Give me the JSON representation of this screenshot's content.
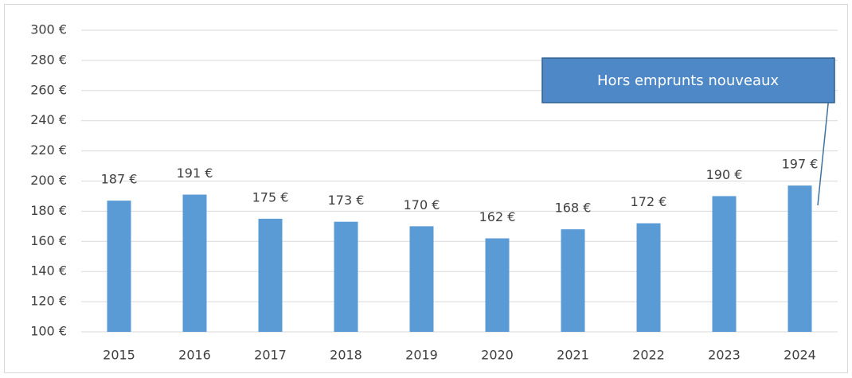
{
  "chart_data": {
    "type": "bar",
    "categories": [
      "2015",
      "2016",
      "2017",
      "2018",
      "2019",
      "2020",
      "2021",
      "2022",
      "2023",
      "2024"
    ],
    "values": [
      187,
      191,
      175,
      173,
      170,
      162,
      168,
      172,
      190,
      197
    ],
    "value_labels": [
      "187 €",
      "191 €",
      "175 €",
      "173 €",
      "170 €",
      "162 €",
      "168 €",
      "172 €",
      "190 €",
      "197 €"
    ],
    "color": "#5b9bd5",
    "ylim": [
      100,
      300
    ],
    "yticks": [
      {
        "value": 100,
        "label": "100 €"
      },
      {
        "value": 120,
        "label": "120 €"
      },
      {
        "value": 140,
        "label": "140 €"
      },
      {
        "value": 160,
        "label": "160 €"
      },
      {
        "value": 180,
        "label": "180 €"
      },
      {
        "value": 200,
        "label": "200 €"
      },
      {
        "value": 220,
        "label": "220 €"
      },
      {
        "value": 240,
        "label": "240 €"
      },
      {
        "value": 260,
        "label": "260 €"
      },
      {
        "value": 280,
        "label": "280 €"
      },
      {
        "value": 300,
        "label": "300 €"
      }
    ],
    "grid": true,
    "annotation": "Hors emprunts nouveaux"
  }
}
